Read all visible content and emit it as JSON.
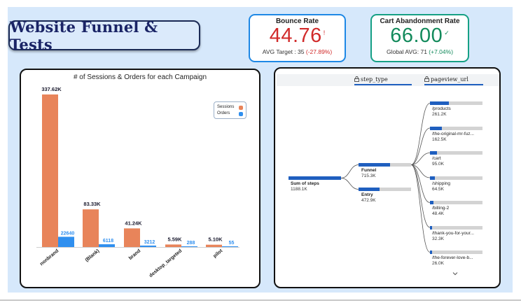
{
  "title": "Website Funnel & Tests",
  "kpis": {
    "bounce": {
      "title": "Bounce Rate",
      "value": "44.76",
      "indicator": "!",
      "sub_prefix": "AVG Target : 35 ",
      "sub_delta": "(-27.89%)",
      "color": "#d12a2a"
    },
    "cart": {
      "title": "Cart Abandonment Rate",
      "value": "66.00",
      "indicator": "✓",
      "sub_prefix": "Global AVG: 71 ",
      "sub_delta": "(+7.04%)",
      "color": "#138a5c"
    }
  },
  "chart_data": {
    "type": "bar",
    "title": "# of Sessions & Orders for each Campaign",
    "categories": [
      "nonbrand",
      "(Blank)",
      "brand",
      "desktop_targeted",
      "pilot"
    ],
    "series": [
      {
        "name": "Sessions",
        "values": [
          337620,
          83330,
          41240,
          5590,
          5100
        ],
        "labels": [
          "337.62K",
          "83.33K",
          "41.24K",
          "5.59K",
          "5.10K"
        ],
        "color": "#e8845a"
      },
      {
        "name": "Orders",
        "values": [
          22640,
          6118,
          3212,
          288,
          55
        ],
        "labels": [
          "22640",
          "6118",
          "3212",
          "288",
          "55"
        ],
        "color": "#2f8fef"
      }
    ],
    "legend": "top-right",
    "grid": false
  },
  "tree": {
    "headers": {
      "step_type": "step_type",
      "pageview_url": "pageview_url"
    },
    "root": {
      "label": "Sum of steps",
      "value": "1188.1K",
      "amount": 1188.1
    },
    "level1": [
      {
        "label": "Funnel",
        "value": "715.3K",
        "amount": 715.3
      },
      {
        "label": "Entry",
        "value": "472.9K",
        "amount": 472.9
      }
    ],
    "level2": [
      {
        "label": "/products",
        "value": "261.2K",
        "amount": 261.2
      },
      {
        "label": "/the-original-mr-fuz...",
        "value": "162.5K",
        "amount": 162.5
      },
      {
        "label": "/cart",
        "value": "95.0K",
        "amount": 95.0
      },
      {
        "label": "/shipping",
        "value": "64.5K",
        "amount": 64.5
      },
      {
        "label": "/billing-2",
        "value": "48.4K",
        "amount": 48.4
      },
      {
        "label": "/thank-you-for-your...",
        "value": "32.3K",
        "amount": 32.3
      },
      {
        "label": "/the-forever-love-b...",
        "value": "26.0K",
        "amount": 26.0
      }
    ]
  },
  "colors": {
    "page_bg": "#d6e8fb",
    "bar_blue": "#1f5fbf",
    "bar_grey": "#d3d3d3"
  }
}
